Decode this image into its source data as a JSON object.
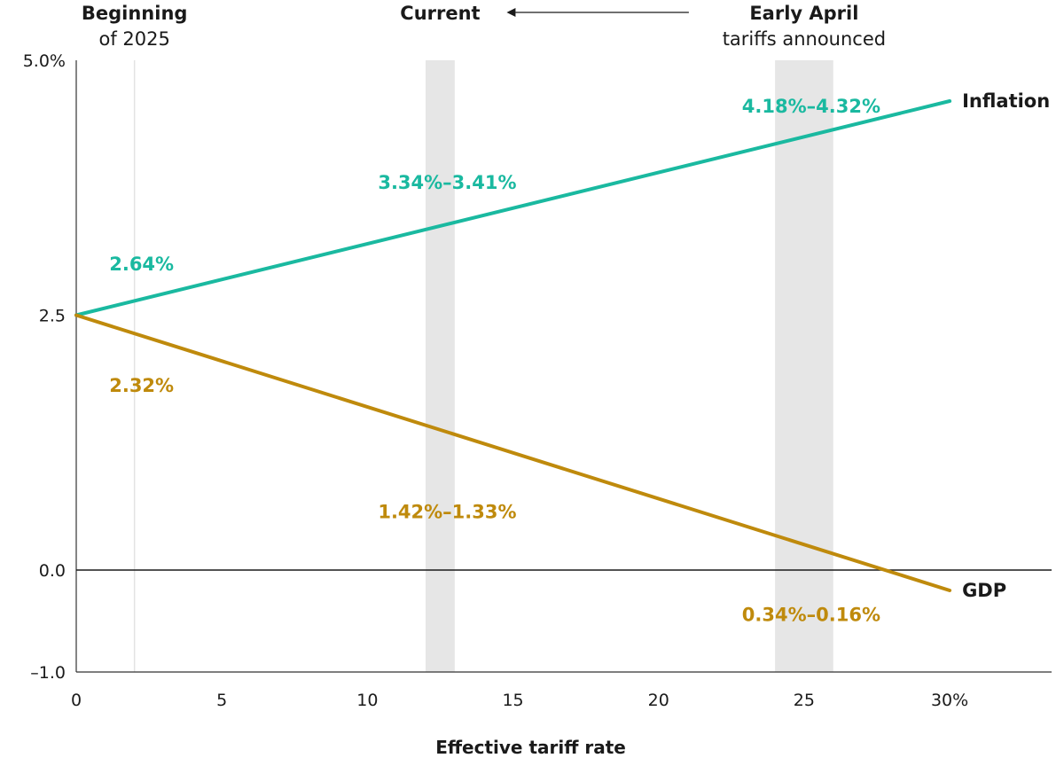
{
  "chart_data": {
    "type": "line",
    "xlabel": "Effective tariff rate",
    "ylabel": "",
    "xlim": [
      0,
      33.5
    ],
    "ylim": [
      -1.0,
      5.0
    ],
    "x_ticks": [
      {
        "value": 0,
        "label": "0"
      },
      {
        "value": 5,
        "label": "5"
      },
      {
        "value": 10,
        "label": "10"
      },
      {
        "value": 15,
        "label": "15"
      },
      {
        "value": 20,
        "label": "20"
      },
      {
        "value": 25,
        "label": "25"
      },
      {
        "value": 30,
        "label": "30%"
      }
    ],
    "y_ticks": [
      {
        "value": 5.0,
        "label": "5.0%"
      },
      {
        "value": 2.5,
        "label": "2.5"
      },
      {
        "value": 0.0,
        "label": "0.0"
      },
      {
        "value": -1.0,
        "label": "–1.0"
      }
    ],
    "series": [
      {
        "name": "Inflation",
        "color": "#1ab9a0",
        "x": [
          0,
          30
        ],
        "y": [
          2.5,
          4.6
        ]
      },
      {
        "name": "GDP",
        "color": "#bf8a0c",
        "x": [
          0,
          30
        ],
        "y": [
          2.5,
          -0.2
        ]
      }
    ],
    "reference_line": {
      "x": 2
    },
    "shaded_bands": [
      {
        "name": "current",
        "x_range": [
          12,
          13
        ]
      },
      {
        "name": "early-april",
        "x_range": [
          24,
          26
        ]
      }
    ],
    "top_annotations": {
      "beginning_line1": "Beginning",
      "beginning_line2": "of 2025",
      "current": "Current",
      "early_april_line1": "Early April",
      "early_april_line2": "tariffs announced"
    },
    "value_labels": [
      {
        "series": "Inflation",
        "text": "2.64%",
        "x": 2.0,
        "y": 3.0
      },
      {
        "series": "Inflation",
        "text": "3.34%–3.41%",
        "x": 12.5,
        "y": 3.8
      },
      {
        "series": "Inflation",
        "text": "4.18%–4.32%",
        "x": 25.0,
        "y": 4.55
      },
      {
        "series": "GDP",
        "text": "2.32%",
        "x": 2.0,
        "y": 1.81
      },
      {
        "series": "GDP",
        "text": "1.42%–1.33%",
        "x": 12.5,
        "y": 0.57
      },
      {
        "series": "GDP",
        "text": "0.34%–0.16%",
        "x": 25.0,
        "y": -0.44
      }
    ]
  }
}
